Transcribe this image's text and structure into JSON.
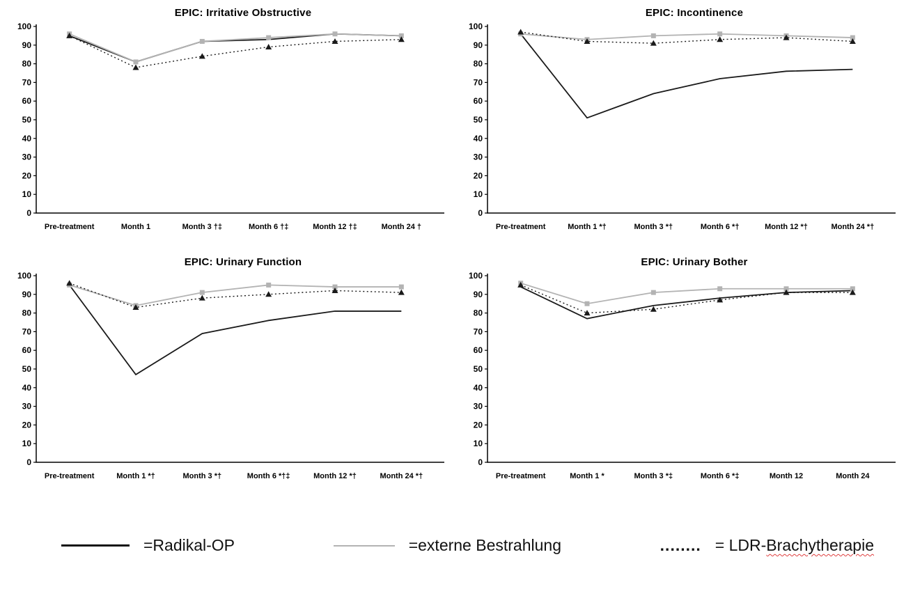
{
  "page": {
    "background": "#ffffff"
  },
  "colors": {
    "radikal_op": "#1a1a1a",
    "externe_bestrahlung": "#b3b3b3",
    "ldr_brachytherapie": "#1a1a1a",
    "axis": "#000000",
    "spellcheck_underline": "#e04040"
  },
  "chart_data": [
    {
      "type": "line",
      "title": "EPIC: Irritative Obstructive",
      "categories": [
        "Pre-treatment",
        "Month 1",
        "Month 3 †‡",
        "Month 6 †‡",
        "Month 12 †‡",
        "Month 24 †"
      ],
      "ylim": [
        0,
        100
      ],
      "ytick_step": 10,
      "grid": false,
      "legend_position": "bottom-shared",
      "series": [
        {
          "name": "Radikal-OP",
          "color": "#1a1a1a",
          "line": "solid",
          "marker": "none",
          "width": 1.8,
          "values": [
            95,
            81,
            92,
            93,
            96,
            95
          ]
        },
        {
          "name": "externe Bestrahlung",
          "color": "#b3b3b3",
          "line": "solid",
          "marker": "square",
          "width": 1.8,
          "values": [
            96,
            81,
            92,
            94,
            96,
            95
          ]
        },
        {
          "name": "LDR-Brachytherapie",
          "color": "#1a1a1a",
          "line": "dotted",
          "marker": "triangle",
          "width": 1.4,
          "values": [
            95,
            78,
            84,
            89,
            92,
            93
          ]
        }
      ]
    },
    {
      "type": "line",
      "title": "EPIC: Incontinence",
      "categories": [
        "Pre-treatment",
        "Month 1 *†",
        "Month 3 *†",
        "Month 6 *†",
        "Month 12 *†",
        "Month 24 *†"
      ],
      "ylim": [
        0,
        100
      ],
      "ytick_step": 10,
      "grid": false,
      "legend_position": "bottom-shared",
      "series": [
        {
          "name": "Radikal-OP",
          "color": "#1a1a1a",
          "line": "solid",
          "marker": "none",
          "width": 1.8,
          "values": [
            96,
            51,
            64,
            72,
            76,
            77
          ]
        },
        {
          "name": "externe Bestrahlung",
          "color": "#b3b3b3",
          "line": "solid",
          "marker": "square",
          "width": 1.8,
          "values": [
            96,
            93,
            95,
            96,
            95,
            94
          ]
        },
        {
          "name": "LDR-Brachytherapie",
          "color": "#1a1a1a",
          "line": "dotted",
          "marker": "triangle",
          "width": 1.4,
          "values": [
            97,
            92,
            91,
            93,
            94,
            92
          ]
        }
      ]
    },
    {
      "type": "line",
      "title": "EPIC:  Urinary Function",
      "categories": [
        "Pre-treatment",
        "Month 1 *†",
        "Month 3 *†",
        "Month 6 *†‡",
        "Month 12 *†",
        "Month 24 *†"
      ],
      "ylim": [
        0,
        100
      ],
      "ytick_step": 10,
      "grid": false,
      "legend_position": "bottom-shared",
      "series": [
        {
          "name": "Radikal-OP",
          "color": "#1a1a1a",
          "line": "solid",
          "marker": "none",
          "width": 1.8,
          "values": [
            95,
            47,
            69,
            76,
            81,
            81
          ]
        },
        {
          "name": "externe Bestrahlung",
          "color": "#b3b3b3",
          "line": "solid",
          "marker": "square",
          "width": 1.8,
          "values": [
            95,
            84,
            91,
            95,
            94,
            94
          ]
        },
        {
          "name": "LDR-Brachytherapie",
          "color": "#1a1a1a",
          "line": "dotted",
          "marker": "triangle",
          "width": 1.4,
          "values": [
            96,
            83,
            88,
            90,
            92,
            91
          ]
        }
      ]
    },
    {
      "type": "line",
      "title": "EPIC: Urinary Bother",
      "categories": [
        "Pre-treatment",
        "Month 1 *",
        "Month 3 *‡",
        "Month 6 *‡",
        "Month 12",
        "Month 24"
      ],
      "ylim": [
        0,
        100
      ],
      "ytick_step": 10,
      "grid": false,
      "legend_position": "bottom-shared",
      "series": [
        {
          "name": "Radikal-OP",
          "color": "#1a1a1a",
          "line": "solid",
          "marker": "none",
          "width": 1.8,
          "values": [
            94,
            77,
            84,
            88,
            91,
            92
          ]
        },
        {
          "name": "externe Bestrahlung",
          "color": "#b3b3b3",
          "line": "solid",
          "marker": "square",
          "width": 1.8,
          "values": [
            96,
            85,
            91,
            93,
            93,
            93
          ]
        },
        {
          "name": "LDR-Brachytherapie",
          "color": "#1a1a1a",
          "line": "dotted",
          "marker": "triangle",
          "width": 1.4,
          "values": [
            95,
            80,
            82,
            87,
            91,
            91
          ]
        }
      ]
    }
  ],
  "legend": {
    "items": [
      {
        "label": "=Radikal-OP",
        "swatch": "solid-black-line",
        "color": "#1a1a1a"
      },
      {
        "label": "=externe Bestrahlung",
        "swatch": "solid-gray-line",
        "color": "#b3b3b3"
      },
      {
        "dots": "........",
        "label_prefix": "= LDR-",
        "label_word": "Brachytherapie",
        "swatch": "dotted-text",
        "color": "#1a1a1a"
      }
    ]
  }
}
